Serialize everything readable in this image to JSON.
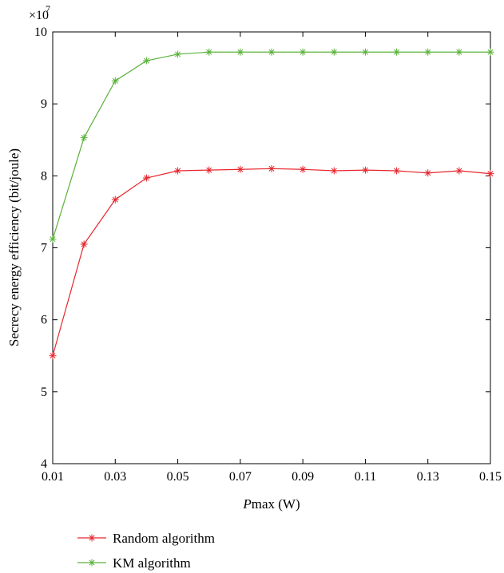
{
  "chart_data": {
    "type": "line",
    "title": "",
    "ylabel": "Secrecy energy efficiency (bit/joule)",
    "xlabel_italic": "P",
    "xlabel_rest": "max (W)",
    "y_multiplier": "×10",
    "y_multiplier_exp": "7",
    "xlim": [
      0.01,
      0.15
    ],
    "ylim": [
      4,
      10
    ],
    "x_ticks": [
      "0.01",
      "0.03",
      "0.05",
      "0.07",
      "0.09",
      "0.11",
      "0.13",
      "0.15"
    ],
    "x_tick_values": [
      0.01,
      0.03,
      0.05,
      0.07,
      0.09,
      0.11,
      0.13,
      0.15
    ],
    "y_ticks": [
      "4",
      "5",
      "6",
      "7",
      "8",
      "9",
      "10"
    ],
    "y_tick_values": [
      4,
      5,
      6,
      7,
      8,
      9,
      10
    ],
    "grid": false,
    "legend_position": "bottom-left, below plot",
    "x": [
      0.01,
      0.02,
      0.03,
      0.04,
      0.05,
      0.06,
      0.07,
      0.08,
      0.09,
      0.1,
      0.11,
      0.12,
      0.13,
      0.14,
      0.15
    ],
    "series": [
      {
        "name": "Random algorithm",
        "color": "#e8252c",
        "marker": "asterisk",
        "values": [
          5.5,
          7.05,
          7.67,
          7.97,
          8.07,
          8.08,
          8.09,
          8.1,
          8.09,
          8.07,
          8.08,
          8.07,
          8.04,
          8.07,
          8.03
        ]
      },
      {
        "name": "KM algorithm",
        "color": "#5ab23a",
        "marker": "asterisk",
        "values": [
          7.12,
          8.53,
          9.32,
          9.6,
          9.69,
          9.72,
          9.72,
          9.72,
          9.72,
          9.72,
          9.72,
          9.72,
          9.72,
          9.72,
          9.72
        ]
      }
    ]
  }
}
